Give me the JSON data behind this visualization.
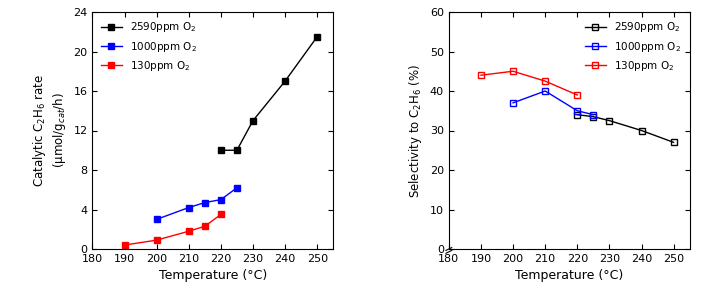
{
  "left": {
    "xlabel": "Temperature (°C)",
    "ylabel": "Catalytic C$_2$H$_6$ rate\n(μmol/g$_{cat}$/h)",
    "xlim": [
      180,
      255
    ],
    "ylim": [
      0,
      24
    ],
    "yticks": [
      0,
      4,
      8,
      12,
      16,
      20,
      24
    ],
    "xticks": [
      180,
      190,
      200,
      210,
      220,
      230,
      240,
      250
    ],
    "series": [
      {
        "label": "2590ppm O$_2$",
        "color": "black",
        "marker_filled": true,
        "x": [
          220,
          225,
          230,
          240,
          250
        ],
        "y": [
          10.0,
          10.0,
          13.0,
          17.0,
          21.5
        ]
      },
      {
        "label": "1000ppm O$_2$",
        "color": "blue",
        "marker_filled": true,
        "x": [
          200,
          210,
          215,
          220,
          225
        ],
        "y": [
          3.0,
          4.2,
          4.7,
          5.0,
          6.2
        ]
      },
      {
        "label": "130ppm O$_2$",
        "color": "red",
        "marker_filled": true,
        "x": [
          190,
          200,
          210,
          215,
          220
        ],
        "y": [
          0.4,
          0.9,
          1.8,
          2.3,
          3.5
        ]
      }
    ]
  },
  "right": {
    "xlabel": "Temperature (°C)",
    "ylabel": "Selectivity to C$_2$H$_6$ (%)",
    "xlim": [
      180,
      255
    ],
    "ylim": [
      0,
      60
    ],
    "yticks": [
      0,
      10,
      20,
      30,
      40,
      50,
      60
    ],
    "xticks": [
      180,
      190,
      200,
      210,
      220,
      230,
      240,
      250
    ],
    "series": [
      {
        "label": "2590ppm O$_2$",
        "color": "black",
        "marker_filled": false,
        "x": [
          220,
          225,
          230,
          240,
          250
        ],
        "y": [
          34.0,
          33.5,
          32.5,
          30.0,
          27.0
        ]
      },
      {
        "label": "1000ppm O$_2$",
        "color": "blue",
        "marker_filled": false,
        "x": [
          200,
          210,
          220,
          225
        ],
        "y": [
          37.0,
          40.0,
          35.0,
          34.0
        ]
      },
      {
        "label": "130ppm O$_2$",
        "color": "red",
        "marker_filled": false,
        "x": [
          190,
          200,
          210,
          220
        ],
        "y": [
          44.0,
          45.0,
          42.5,
          39.0
        ]
      }
    ]
  }
}
